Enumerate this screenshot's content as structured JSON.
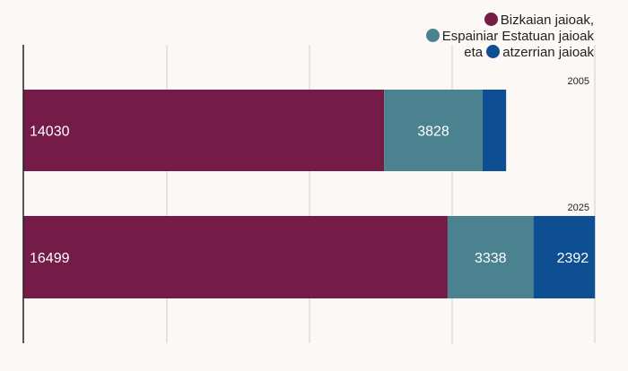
{
  "chart_data": {
    "type": "bar",
    "orientation": "horizontal",
    "stacked": true,
    "categories": [
      "2005",
      "2025"
    ],
    "series": [
      {
        "name": "Bizkaian jaioak",
        "values": [
          14030,
          16499
        ],
        "color": "#741b47"
      },
      {
        "name": "Espainiar Estatuan jaioak",
        "values": [
          3828,
          3338
        ],
        "color": "#4a8290"
      },
      {
        "name": "atzerrian jaioak",
        "values": [
          916,
          2392
        ],
        "color": "#0e4f94"
      }
    ],
    "xlim": [
      0,
      22222
    ],
    "grid": true,
    "legend_position": "top-right",
    "legend_joiner": "eta",
    "legend_separator": ","
  }
}
